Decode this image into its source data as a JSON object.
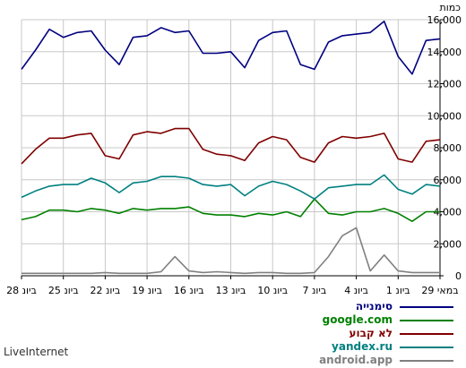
{
  "chart_data": {
    "type": "line",
    "unit_label": "כמות",
    "ylim": [
      0,
      16000
    ],
    "yticks": [
      0,
      2000,
      4000,
      6000,
      8000,
      10000,
      12000,
      14000,
      16000
    ],
    "grid": true,
    "x_order": "right-to-left",
    "x_dates": [
      "28 ביונ",
      "27 ביונ",
      "26 ביונ",
      "25 ביונ",
      "24 ביונ",
      "23 ביונ",
      "22 ביונ",
      "21 ביונ",
      "20 ביונ",
      "19 ביונ",
      "18 ביונ",
      "17 ביונ",
      "16 ביונ",
      "15 ביונ",
      "14 ביונ",
      "13 ביונ",
      "12 ביונ",
      "11 ביונ",
      "10 ביונ",
      "9 ביונ",
      "8 ביונ",
      "7 ביונ",
      "6 ביונ",
      "5 ביונ",
      "4 ביונ",
      "3 ביונ",
      "2 ביונ",
      "1 ביונ",
      "31 במאי",
      "30 במאי",
      "29 במאי"
    ],
    "tick_labels": [
      "28 ביונ",
      "25 ביונ",
      "22 ביונ",
      "19 ביונ",
      "16 ביונ",
      "13 ביונ",
      "10 ביונ",
      "7 ביונ",
      "4 ביונ",
      "1 ביונ",
      "29 במאי"
    ],
    "series": [
      {
        "name": "סימנייה",
        "color": "#000080",
        "values": [
          12900,
          14100,
          15400,
          14900,
          15200,
          15300,
          14100,
          13200,
          14900,
          15000,
          15500,
          15200,
          15300,
          13900,
          13900,
          14000,
          13000,
          14700,
          15200,
          15300,
          13200,
          12900,
          14600,
          15000,
          15100,
          15200,
          15900,
          13700,
          12600,
          14700,
          14800
        ]
      },
      {
        "name": "google.com",
        "color": "#008000",
        "values": [
          3500,
          3700,
          4100,
          4100,
          4000,
          4200,
          4100,
          3900,
          4200,
          4100,
          4200,
          4200,
          4300,
          3900,
          3800,
          3800,
          3700,
          3900,
          3800,
          4000,
          3700,
          4800,
          3900,
          3800,
          4000,
          4000,
          4200,
          3900,
          3400,
          4000,
          4000
        ]
      },
      {
        "name": "לא קבוע",
        "color": "#800000",
        "values": [
          7000,
          7900,
          8600,
          8600,
          8800,
          8900,
          7500,
          7300,
          8800,
          9000,
          8900,
          9200,
          9200,
          7900,
          7600,
          7500,
          7200,
          8300,
          8700,
          8500,
          7400,
          7100,
          8300,
          8700,
          8600,
          8700,
          8900,
          7300,
          7100,
          8400,
          8500
        ]
      },
      {
        "name": "yandex.ru",
        "color": "#008080",
        "values": [
          4900,
          5300,
          5600,
          5700,
          5700,
          6100,
          5800,
          5200,
          5800,
          5900,
          6200,
          6200,
          6100,
          5700,
          5600,
          5700,
          5000,
          5600,
          5900,
          5700,
          5300,
          4800,
          5500,
          5600,
          5700,
          5700,
          6300,
          5400,
          5100,
          5700,
          5600
        ]
      },
      {
        "name": "android.app",
        "color": "#808080",
        "values": [
          150,
          150,
          150,
          150,
          150,
          150,
          200,
          150,
          150,
          150,
          250,
          1200,
          300,
          200,
          250,
          200,
          150,
          200,
          200,
          150,
          150,
          200,
          1200,
          2500,
          3000,
          300,
          1300,
          300,
          200,
          200,
          200
        ]
      }
    ]
  },
  "credit": "LiveInternet"
}
